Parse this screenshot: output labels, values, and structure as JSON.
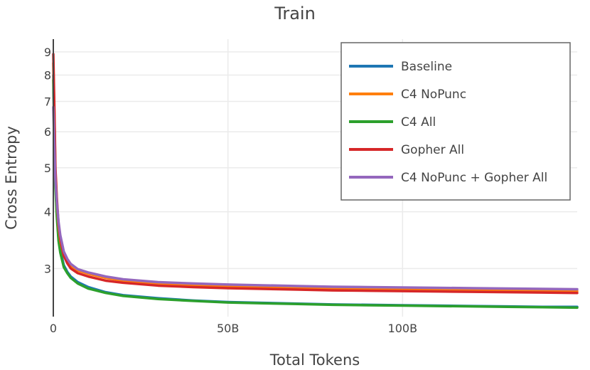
{
  "chart_data": {
    "type": "line",
    "title": "Train",
    "xlabel": "Total Tokens",
    "ylabel": "Cross Entropy",
    "y_scale": "log",
    "x_unit": "tokens",
    "xlim": [
      0,
      150000000000
    ],
    "ylim": [
      2.35,
      9.6
    ],
    "x_ticks": [
      0,
      50000000000,
      100000000000
    ],
    "x_tick_labels": [
      "0",
      "50B",
      "100B"
    ],
    "y_ticks": [
      3,
      4,
      5,
      6,
      7,
      8,
      9
    ],
    "y_tick_labels": [
      "3",
      "4",
      "5",
      "6",
      "7",
      "8",
      "9"
    ],
    "grid": true,
    "legend_position": "top-right",
    "x": [
      0,
      300000000,
      600000000,
      1000000000,
      1500000000,
      2000000000,
      3000000000,
      4000000000,
      5000000000,
      7000000000,
      10000000000,
      15000000000,
      20000000000,
      30000000000,
      40000000000,
      50000000000,
      60000000000,
      70000000000,
      80000000000,
      90000000000,
      100000000000,
      110000000000,
      120000000000,
      130000000000,
      140000000000,
      150000000000
    ],
    "series": [
      {
        "name": "Baseline",
        "color": "#1f77b4",
        "values": [
          8.0,
          6.0,
          4.6,
          4.0,
          3.5,
          3.3,
          3.05,
          2.95,
          2.88,
          2.8,
          2.73,
          2.66,
          2.62,
          2.58,
          2.55,
          2.53,
          2.52,
          2.51,
          2.5,
          2.495,
          2.49,
          2.485,
          2.48,
          2.475,
          2.47,
          2.47
        ]
      },
      {
        "name": "C4 NoPunc",
        "color": "#ff7f0e",
        "values": [
          8.5,
          6.5,
          4.9,
          4.2,
          3.7,
          3.45,
          3.2,
          3.1,
          3.03,
          2.97,
          2.92,
          2.86,
          2.82,
          2.78,
          2.76,
          2.74,
          2.73,
          2.72,
          2.71,
          2.705,
          2.7,
          2.695,
          2.69,
          2.685,
          2.68,
          2.675
        ]
      },
      {
        "name": "C4 All",
        "color": "#2ca02c",
        "values": [
          7.8,
          5.8,
          4.5,
          3.9,
          3.45,
          3.25,
          3.02,
          2.93,
          2.86,
          2.78,
          2.71,
          2.65,
          2.61,
          2.57,
          2.545,
          2.525,
          2.515,
          2.505,
          2.495,
          2.49,
          2.485,
          2.48,
          2.475,
          2.47,
          2.465,
          2.46
        ]
      },
      {
        "name": "Gopher All",
        "color": "#d62728",
        "values": [
          8.9,
          6.8,
          5.0,
          4.3,
          3.75,
          3.48,
          3.2,
          3.08,
          3.0,
          2.93,
          2.88,
          2.82,
          2.79,
          2.75,
          2.73,
          2.715,
          2.705,
          2.695,
          2.685,
          2.68,
          2.675,
          2.67,
          2.665,
          2.66,
          2.655,
          2.65
        ]
      },
      {
        "name": "C4 NoPunc + Gopher All",
        "color": "#9467bd",
        "values": [
          6.8,
          5.6,
          4.7,
          4.2,
          3.8,
          3.55,
          3.27,
          3.15,
          3.07,
          2.99,
          2.94,
          2.88,
          2.84,
          2.8,
          2.78,
          2.765,
          2.755,
          2.745,
          2.735,
          2.73,
          2.725,
          2.72,
          2.715,
          2.71,
          2.705,
          2.7
        ]
      }
    ]
  }
}
